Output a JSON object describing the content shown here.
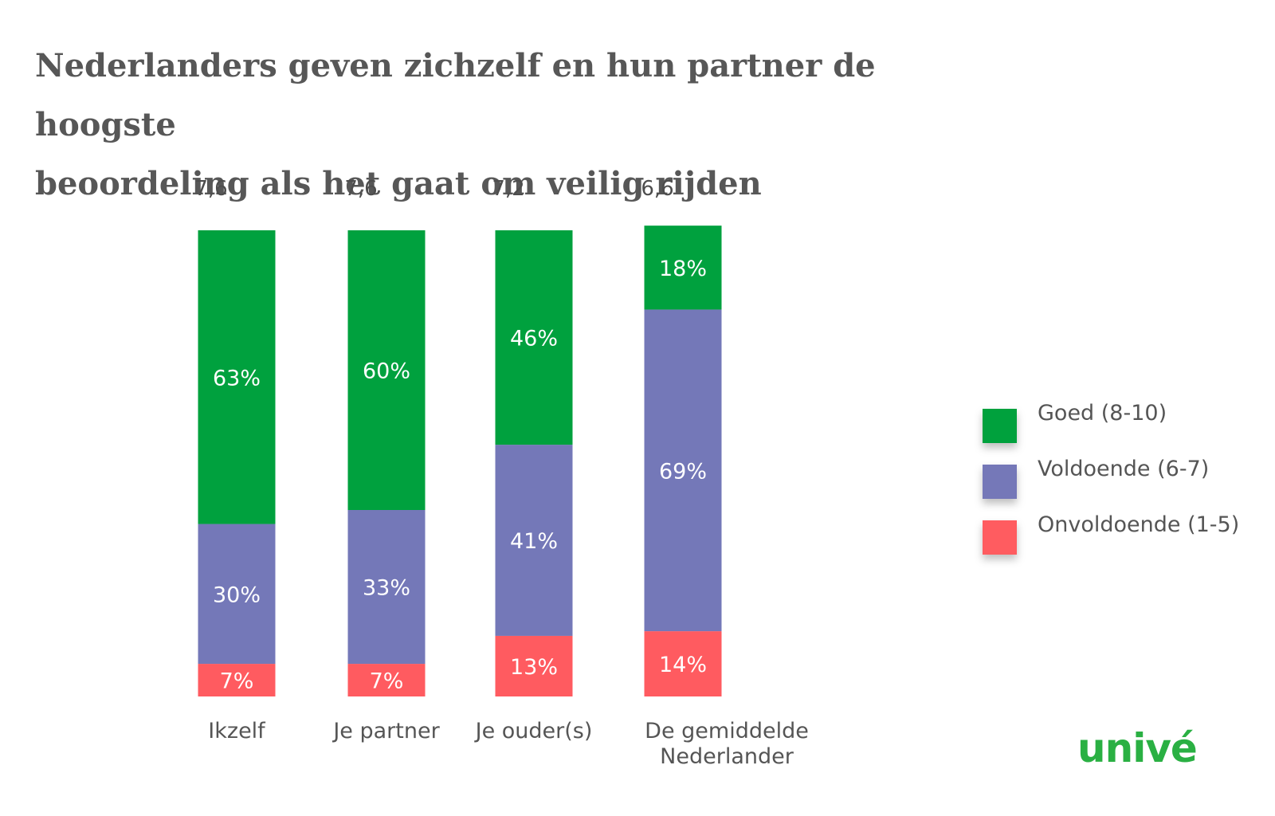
{
  "title": {
    "line1": "Nederlanders geven zichzelf en hun partner de hoogste",
    "line2": "beoordeling als het gaat om veilig rijden"
  },
  "logo": "univé",
  "chart_data": {
    "type": "bar",
    "stacked": true,
    "title": "Nederlanders geven zichzelf en hun partner de hoogste beoordeling als het gaat om veilig rijden",
    "categories": [
      "Ikzelf",
      "Je partner",
      "Je ouder(s)",
      "De gemiddelde Nederlander"
    ],
    "category_lines": [
      [
        "Ikzelf"
      ],
      [
        "Je partner"
      ],
      [
        "Je ouder(s)"
      ],
      [
        "De gemiddelde",
        "Nederlander"
      ]
    ],
    "scores": [
      "7,6",
      "7,6",
      "7,2",
      "6,6"
    ],
    "series": [
      {
        "name": "Onvoldoende (1-5)",
        "color": "#ff5b60",
        "values": [
          7,
          7,
          13,
          14
        ]
      },
      {
        "name": "Voldoende (6-7)",
        "color": "#7478b8",
        "values": [
          30,
          33,
          41,
          69
        ]
      },
      {
        "name": "Goed (8-10)",
        "color": "#00a13e",
        "values": [
          63,
          60,
          46,
          18
        ]
      }
    ],
    "legend_order": [
      "Goed (8-10)",
      "Voldoende (6-7)",
      "Onvoldoende (1-5)"
    ],
    "value_suffix": "%",
    "ylim": [
      0,
      100
    ],
    "legend_position": "right"
  }
}
